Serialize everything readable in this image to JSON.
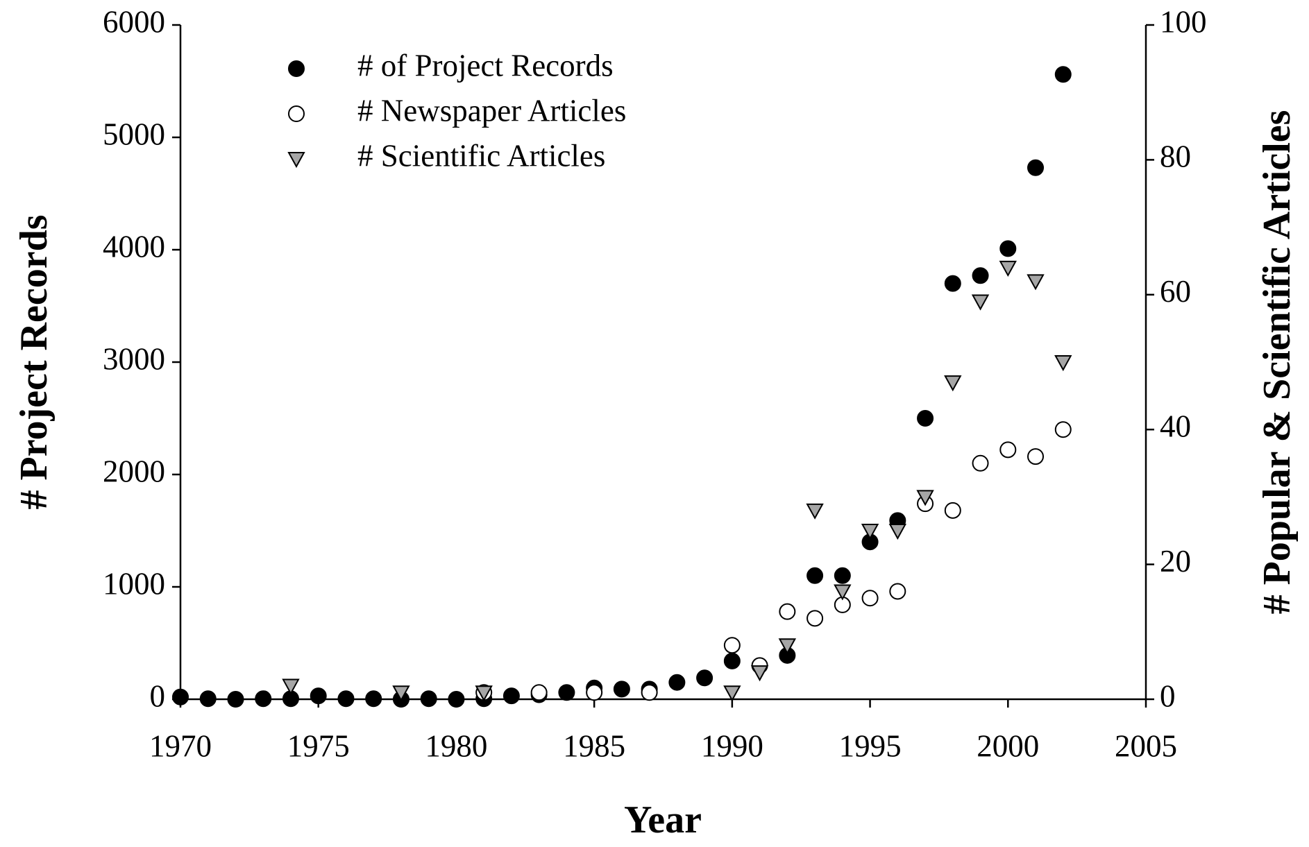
{
  "chart_data": {
    "type": "scatter",
    "x": [
      1970,
      1971,
      1972,
      1973,
      1974,
      1975,
      1976,
      1977,
      1978,
      1979,
      1980,
      1981,
      1982,
      1983,
      1984,
      1985,
      1986,
      1987,
      1988,
      1989,
      1990,
      1991,
      1992,
      1993,
      1994,
      1995,
      1996,
      1997,
      1998,
      1999,
      2000,
      2001,
      2002
    ],
    "series": [
      {
        "name": "# of Project Records",
        "color": "#000000",
        "marker": "filled-circle",
        "values": [
          20,
          5,
          0,
          5,
          5,
          30,
          5,
          5,
          0,
          5,
          0,
          5,
          30,
          40,
          60,
          100,
          90,
          90,
          150,
          190,
          340,
          null,
          390,
          1100,
          1100,
          1400,
          1590,
          2500,
          3700,
          3770,
          4010,
          4730,
          5560
        ]
      },
      {
        "name": "# Newspaper Articles",
        "color": "#ffffff",
        "marker": "open-circle",
        "axis": "y2",
        "values": [
          null,
          null,
          null,
          null,
          null,
          null,
          null,
          null,
          null,
          null,
          null,
          1,
          null,
          1,
          null,
          1,
          null,
          1,
          null,
          null,
          8,
          5,
          13,
          12,
          14,
          15,
          16,
          29,
          28,
          35,
          37,
          36,
          40
        ]
      },
      {
        "name": "# Scientific Articles",
        "color": "#a6a6a6",
        "marker": "triangle-down",
        "axis": "y2",
        "values": [
          null,
          null,
          null,
          null,
          2,
          null,
          null,
          null,
          1,
          null,
          null,
          1,
          null,
          null,
          null,
          null,
          null,
          null,
          null,
          null,
          1,
          4,
          8,
          28,
          16,
          25,
          25,
          30,
          47,
          59,
          64,
          62,
          50
        ]
      }
    ],
    "xlabel": "Year",
    "ylabel": "# Project Records",
    "y2label": "# Popular & Scientific Articles",
    "xlim": [
      1970,
      2005
    ],
    "xticks": [
      1970,
      1975,
      1980,
      1985,
      1990,
      1995,
      2000,
      2005
    ],
    "ylim": [
      0,
      6000
    ],
    "yticks": [
      0,
      1000,
      2000,
      3000,
      4000,
      5000,
      6000
    ],
    "y2lim": [
      0,
      100
    ],
    "y2ticks": [
      0,
      20,
      40,
      60,
      80,
      100
    ],
    "legend": "upper left"
  }
}
